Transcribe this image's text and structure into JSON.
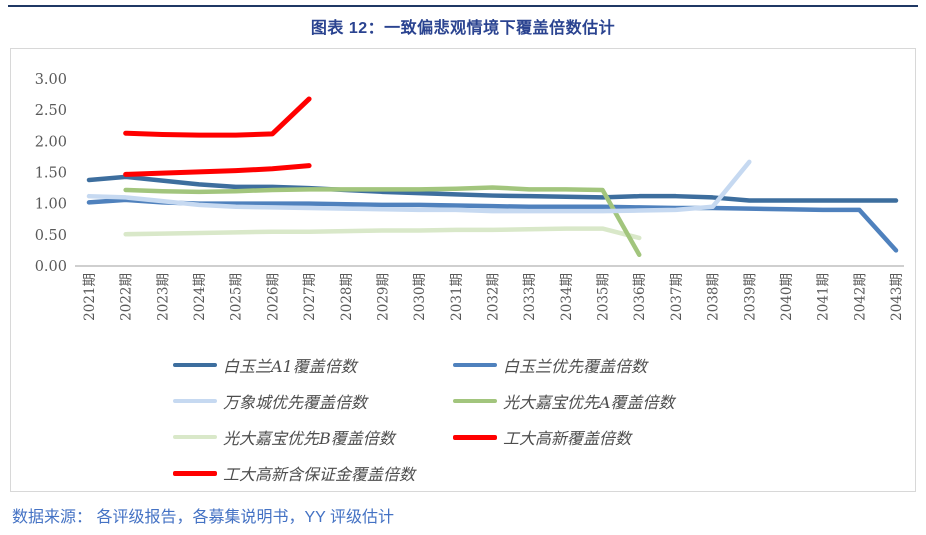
{
  "header": {
    "title": "图表 12：一致偏悲观情境下覆盖倍数估计"
  },
  "footer": {
    "source": "数据来源： 各评级报告，各募集说明书，YY 评级估计"
  },
  "theme": {
    "top_rule_color": "#1F3864",
    "title_color": "#2A4390",
    "source_color": "#4472C4",
    "axis_text_color": "#595959",
    "axis_line_color": "#BFBFBF",
    "box_border_color": "#D8D8D8"
  },
  "chart_data": {
    "type": "line",
    "title": "图表 12：一致偏悲观情境下覆盖倍数估计",
    "xlabel": "",
    "ylabel": "",
    "ylim": [
      0,
      3
    ],
    "ytick_step": 0.5,
    "ytick_decimals": 2,
    "grid": false,
    "legend_position": "bottom",
    "categories": [
      "2021期",
      "2022期",
      "2023期",
      "2024期",
      "2025期",
      "2026期",
      "2027期",
      "2028期",
      "2029期",
      "2030期",
      "2031期",
      "2032期",
      "2033期",
      "2034期",
      "2035期",
      "2036期",
      "2037期",
      "2038期",
      "2039期",
      "2040期",
      "2041期",
      "2042期",
      "2043期"
    ],
    "series": [
      {
        "name": "白玉兰A1覆盖倍数",
        "color": "#3D6E9E",
        "width": 4.5,
        "values": [
          1.38,
          1.43,
          1.37,
          1.31,
          1.27,
          1.27,
          1.25,
          1.22,
          1.19,
          1.17,
          1.15,
          1.13,
          1.12,
          1.11,
          1.1,
          1.12,
          1.12,
          1.1,
          1.05,
          1.05,
          1.05,
          1.05,
          1.05
        ]
      },
      {
        "name": "白玉兰优先覆盖倍数",
        "color": "#4F81BD",
        "width": 4.5,
        "values": [
          1.02,
          1.06,
          1.02,
          1.0,
          1.0,
          1.0,
          1.0,
          0.99,
          0.98,
          0.98,
          0.97,
          0.96,
          0.95,
          0.95,
          0.95,
          0.94,
          0.93,
          0.93,
          0.92,
          0.91,
          0.9,
          0.9,
          0.25
        ]
      },
      {
        "name": "万象城优先覆盖倍数",
        "color": "#C6D9F1",
        "width": 4.5,
        "values": [
          1.12,
          1.1,
          1.04,
          0.98,
          0.95,
          0.94,
          0.93,
          0.92,
          0.91,
          0.9,
          0.9,
          0.88,
          0.88,
          0.88,
          0.88,
          0.89,
          0.9,
          0.95,
          1.67,
          null,
          null,
          null,
          null
        ]
      },
      {
        "name": "光大嘉宝优先A覆盖倍数",
        "color": "#A2C57D",
        "width": 4.5,
        "values": [
          null,
          1.22,
          1.2,
          1.19,
          1.2,
          1.22,
          1.23,
          1.23,
          1.23,
          1.23,
          1.24,
          1.26,
          1.23,
          1.23,
          1.22,
          0.18,
          null,
          null,
          null,
          null,
          null,
          null,
          null
        ]
      },
      {
        "name": "光大嘉宝优先B覆盖倍数",
        "color": "#D9E8C9",
        "width": 4.5,
        "values": [
          null,
          0.51,
          0.52,
          0.53,
          0.54,
          0.55,
          0.55,
          0.56,
          0.57,
          0.57,
          0.58,
          0.58,
          0.59,
          0.6,
          0.6,
          0.45,
          null,
          null,
          null,
          null,
          null,
          null,
          null
        ]
      },
      {
        "name": "工大高新覆盖倍数",
        "color": "#FF0000",
        "width": 5,
        "values": [
          null,
          1.47,
          1.49,
          1.51,
          1.53,
          1.56,
          1.61,
          null,
          null,
          null,
          null,
          null,
          null,
          null,
          null,
          null,
          null,
          null,
          null,
          null,
          null,
          null,
          null
        ]
      },
      {
        "name": "工大高新含保证金覆盖倍数",
        "color": "#FF0000",
        "width": 5,
        "values": [
          null,
          2.13,
          2.11,
          2.1,
          2.1,
          2.12,
          2.68,
          null,
          null,
          null,
          null,
          null,
          null,
          null,
          null,
          null,
          null,
          null,
          null,
          null,
          null,
          null,
          null
        ]
      }
    ]
  }
}
